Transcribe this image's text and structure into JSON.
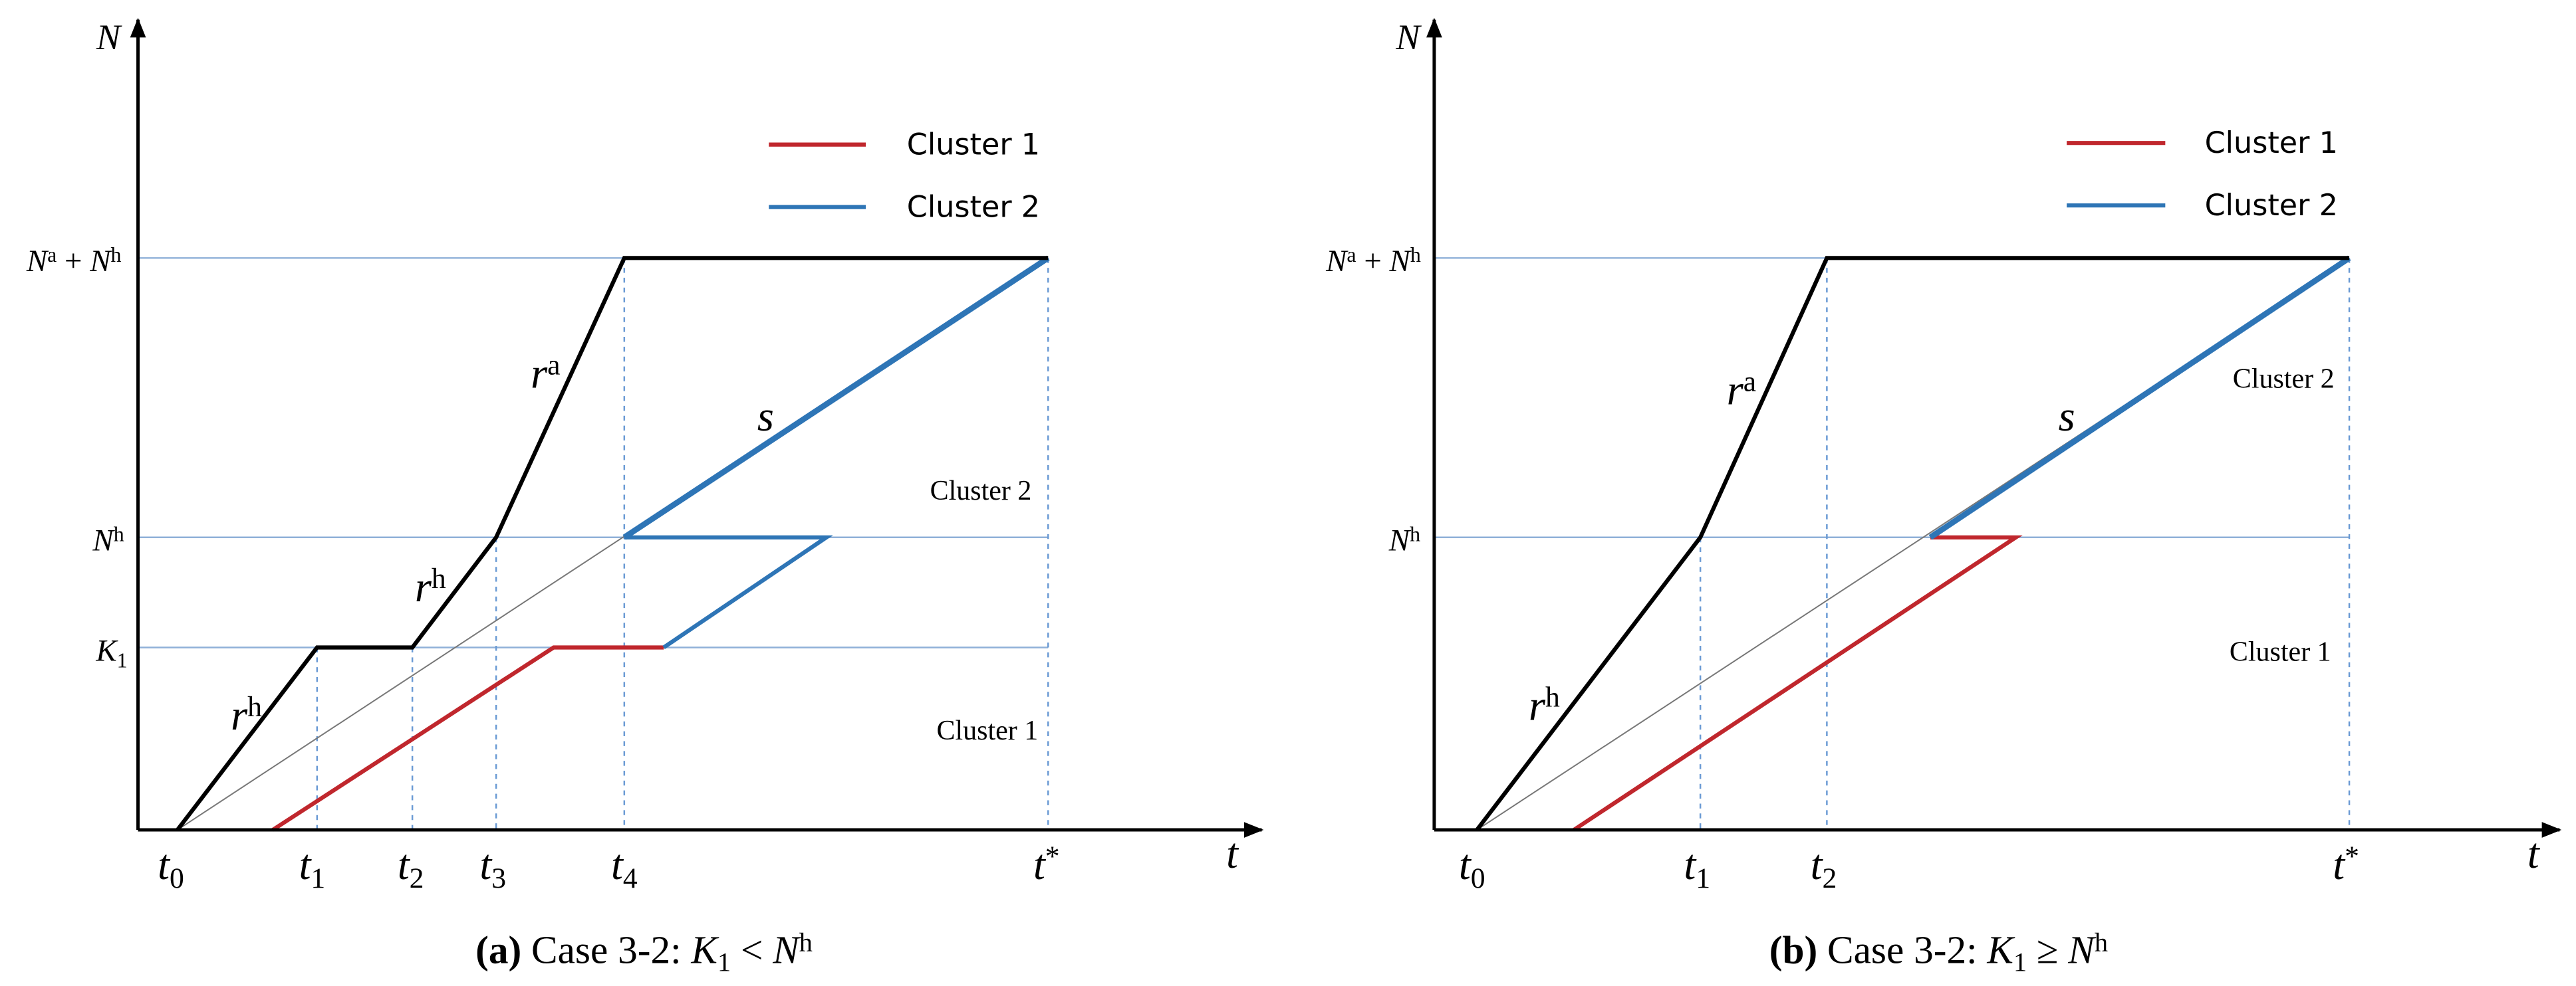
{
  "panels": [
    {
      "y_axis": [
        {
          "t": "N",
          "kind": "math"
        }
      ],
      "x_axis": [
        {
          "t": "t",
          "kind": "math"
        }
      ],
      "x_ticks": [
        [
          {
            "t": "t",
            "kind": "math"
          },
          {
            "t": "0",
            "kind": "sub"
          }
        ],
        [
          {
            "t": "t",
            "kind": "math"
          },
          {
            "t": "1",
            "kind": "sub"
          }
        ],
        [
          {
            "t": "t",
            "kind": "math"
          },
          {
            "t": "2",
            "kind": "sub"
          }
        ],
        [
          {
            "t": "t",
            "kind": "math"
          },
          {
            "t": "3",
            "kind": "sub"
          }
        ],
        [
          {
            "t": "t",
            "kind": "math"
          },
          {
            "t": "4",
            "kind": "sub"
          }
        ],
        [
          {
            "t": "t",
            "kind": "math"
          },
          {
            "t": "*",
            "kind": "sup"
          }
        ]
      ],
      "y_ticks": [
        [
          {
            "t": "N",
            "kind": "math"
          },
          {
            "t": "a",
            "kind": "sup"
          },
          {
            "t": " + ",
            "kind": "text"
          },
          {
            "t": "N",
            "kind": "math"
          },
          {
            "t": "h",
            "kind": "sup"
          }
        ],
        [
          {
            "t": "N",
            "kind": "math"
          },
          {
            "t": "h",
            "kind": "sup"
          }
        ],
        [
          {
            "t": "K",
            "kind": "math"
          },
          {
            "t": "1",
            "kind": "sub"
          }
        ]
      ],
      "legend": [
        "Cluster 1",
        "Cluster 2"
      ],
      "regions": [
        "Cluster 2",
        "Cluster 1"
      ],
      "curve_labels": [
        [
          {
            "t": "r",
            "kind": "math"
          },
          {
            "t": "a",
            "kind": "sup"
          }
        ],
        [
          {
            "t": "s",
            "kind": "math"
          }
        ],
        [
          {
            "t": "r",
            "kind": "math"
          },
          {
            "t": "h",
            "kind": "sup"
          }
        ],
        [
          {
            "t": "r",
            "kind": "math"
          },
          {
            "t": "h",
            "kind": "sup"
          }
        ]
      ],
      "caption": [
        {
          "t": "(a)",
          "kind": "bold"
        },
        {
          "t": " Case 3-2: ",
          "kind": "text"
        },
        {
          "t": "K",
          "kind": "math"
        },
        {
          "t": "1",
          "kind": "sub"
        },
        {
          "t": " < ",
          "kind": "text"
        },
        {
          "t": "N",
          "kind": "math"
        },
        {
          "t": "h",
          "kind": "sup"
        }
      ]
    },
    {
      "y_axis": [
        {
          "t": "N",
          "kind": "math"
        }
      ],
      "x_axis": [
        {
          "t": "t",
          "kind": "math"
        }
      ],
      "x_ticks": [
        [
          {
            "t": "t",
            "kind": "math"
          },
          {
            "t": "0",
            "kind": "sub"
          }
        ],
        [
          {
            "t": "t",
            "kind": "math"
          },
          {
            "t": "1",
            "kind": "sub"
          }
        ],
        [
          {
            "t": "t",
            "kind": "math"
          },
          {
            "t": "2",
            "kind": "sub"
          }
        ],
        [
          {
            "t": "t",
            "kind": "math"
          },
          {
            "t": "*",
            "kind": "sup"
          }
        ]
      ],
      "y_ticks": [
        [
          {
            "t": "N",
            "kind": "math"
          },
          {
            "t": "a",
            "kind": "sup"
          },
          {
            "t": " + ",
            "kind": "text"
          },
          {
            "t": "N",
            "kind": "math"
          },
          {
            "t": "h",
            "kind": "sup"
          }
        ],
        [
          {
            "t": "N",
            "kind": "math"
          },
          {
            "t": "h",
            "kind": "sup"
          }
        ]
      ],
      "legend": [
        "Cluster 1",
        "Cluster 2"
      ],
      "regions": [
        "Cluster 2",
        "Cluster 1"
      ],
      "curve_labels": [
        [
          {
            "t": "r",
            "kind": "math"
          },
          {
            "t": "a",
            "kind": "sup"
          }
        ],
        [
          {
            "t": "s",
            "kind": "math"
          }
        ],
        [
          {
            "t": "r",
            "kind": "math"
          },
          {
            "t": "h",
            "kind": "sup"
          }
        ]
      ],
      "caption": [
        {
          "t": "(b)",
          "kind": "bold"
        },
        {
          "t": " Case 3-2: ",
          "kind": "text"
        },
        {
          "t": "K",
          "kind": "math"
        },
        {
          "t": "1",
          "kind": "sub"
        },
        {
          "t": " ≥ ",
          "kind": "text"
        },
        {
          "t": "N",
          "kind": "math"
        },
        {
          "t": "h",
          "kind": "sup"
        }
      ]
    }
  ]
}
